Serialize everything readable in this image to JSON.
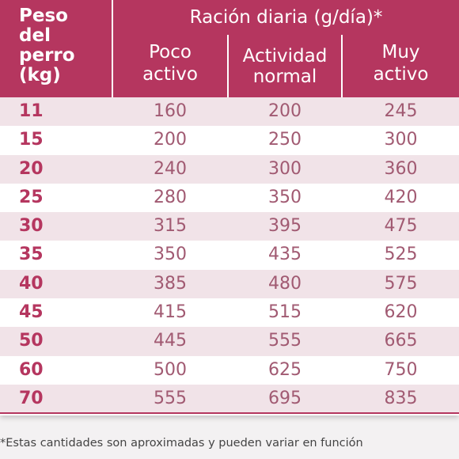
{
  "table": {
    "header": {
      "weight_col": [
        "Peso",
        "del",
        "perro",
        "(kg)"
      ],
      "group_title": "Ración diaria (g/día)*",
      "columns": [
        [
          "Poco",
          "activo"
        ],
        [
          "Actividad",
          "normal"
        ],
        [
          "Muy",
          "activo"
        ]
      ]
    },
    "rows": [
      {
        "kg": "11",
        "poco": "160",
        "normal": "200",
        "muy": "245"
      },
      {
        "kg": "15",
        "poco": "200",
        "normal": "250",
        "muy": "300"
      },
      {
        "kg": "20",
        "poco": "240",
        "normal": "300",
        "muy": "360"
      },
      {
        "kg": "25",
        "poco": "280",
        "normal": "350",
        "muy": "420"
      },
      {
        "kg": "30",
        "poco": "315",
        "normal": "395",
        "muy": "475"
      },
      {
        "kg": "35",
        "poco": "350",
        "normal": "435",
        "muy": "525"
      },
      {
        "kg": "40",
        "poco": "385",
        "normal": "480",
        "muy": "575"
      },
      {
        "kg": "45",
        "poco": "415",
        "normal": "515",
        "muy": "620"
      },
      {
        "kg": "50",
        "poco": "445",
        "normal": "555",
        "muy": "665"
      },
      {
        "kg": "60",
        "poco": "500",
        "normal": "625",
        "muy": "750"
      },
      {
        "kg": "70",
        "poco": "555",
        "normal": "695",
        "muy": "835"
      }
    ]
  },
  "footnote": "*Estas cantidades son aproximadas y pueden variar en función",
  "colors": {
    "header_bg": "#b5365f",
    "row_alt_bg": "#f1e3e8",
    "kg_text": "#b5365f",
    "value_text": "#a15a72"
  }
}
